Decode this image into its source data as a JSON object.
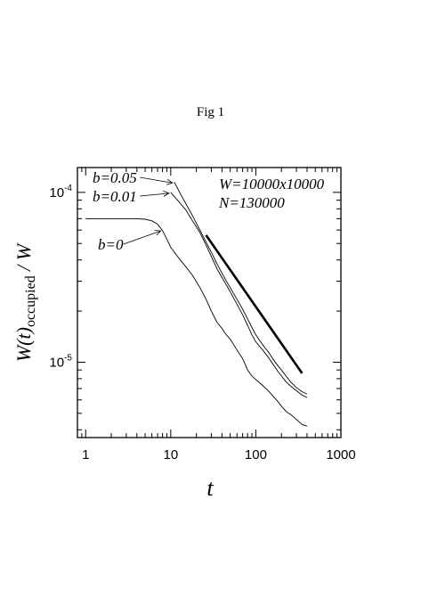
{
  "page": {
    "title": "Fig 1"
  },
  "chart_data": {
    "type": "line",
    "xlabel": "t",
    "ylabel": "W(t)occupied / W",
    "ylabel_parts": {
      "pre": "W(t)",
      "sub": "occupied",
      "post": " / W"
    },
    "xscale": "log",
    "yscale": "log",
    "xlim": [
      0.8,
      1000
    ],
    "ylim": [
      3.6e-06,
      0.00014
    ],
    "xticks": [
      {
        "value": 1,
        "label": "1"
      },
      {
        "value": 10,
        "label": "10"
      },
      {
        "value": 100,
        "label": "100"
      },
      {
        "value": 1000,
        "label": "1000"
      }
    ],
    "yticks": [
      {
        "value": 1e-05,
        "base": "10",
        "exp": "-5"
      },
      {
        "value": 0.0001,
        "base": "10",
        "exp": "-4"
      }
    ],
    "grid": false,
    "parameters": [
      "W=10000x10000",
      "N=130000"
    ],
    "series": [
      {
        "name": "b=0",
        "x": [
          1,
          2,
          3,
          4,
          5,
          6,
          7,
          8,
          9,
          10,
          12,
          15,
          18,
          22,
          26,
          30,
          35,
          40,
          45,
          50,
          60,
          70,
          80,
          90,
          100,
          120,
          140,
          160,
          180,
          200,
          230,
          260,
          300,
          350,
          400
        ],
        "y": [
          7e-05,
          7e-05,
          7e-05,
          7e-05,
          6.95e-05,
          6.8e-05,
          6.5e-05,
          5.95e-05,
          5.3e-05,
          4.75e-05,
          4.2e-05,
          3.65e-05,
          3.25e-05,
          2.75e-05,
          2.35e-05,
          2e-05,
          1.72e-05,
          1.58e-05,
          1.45e-05,
          1.37e-05,
          1.18e-05,
          1.05e-05,
          9e-06,
          8.3e-06,
          7.9e-06,
          7.3e-06,
          6.8e-06,
          6.3e-06,
          5.9e-06,
          5.5e-06,
          5.1e-06,
          4.9e-06,
          4.6e-06,
          4.3e-06,
          4.2e-06
        ]
      },
      {
        "name": "b=0.01",
        "x": [
          10,
          12,
          15,
          18,
          22,
          26,
          30,
          35,
          40,
          45,
          50,
          60,
          70,
          80,
          90,
          100,
          120,
          140,
          160,
          180,
          200,
          230,
          260,
          300,
          350,
          400
        ],
        "y": [
          0.0001,
          9e-05,
          7.9e-05,
          6.8e-05,
          5.8e-05,
          4.9e-05,
          4.2e-05,
          3.55e-05,
          3.15e-05,
          2.85e-05,
          2.6e-05,
          2.2e-05,
          1.9e-05,
          1.65e-05,
          1.45e-05,
          1.32e-05,
          1.18e-05,
          1.07e-05,
          9.7e-06,
          8.9e-06,
          8.3e-06,
          7.6e-06,
          7.2e-06,
          6.8e-06,
          6.4e-06,
          6.2e-06
        ]
      },
      {
        "name": "b=0.05",
        "x": [
          11,
          13,
          15,
          18,
          22,
          26,
          30,
          35,
          40,
          45,
          50,
          60,
          70,
          80,
          90,
          100,
          120,
          140,
          160,
          180,
          200,
          230,
          260,
          300,
          350,
          400
        ],
        "y": [
          0.000115,
          9.8e-05,
          8.6e-05,
          7.3e-05,
          6e-05,
          5.1e-05,
          4.45e-05,
          3.8e-05,
          3.35e-05,
          3e-05,
          2.75e-05,
          2.35e-05,
          2.05e-05,
          1.8e-05,
          1.6e-05,
          1.45e-05,
          1.27e-05,
          1.15e-05,
          1.04e-05,
          9.6e-06,
          9e-06,
          8.2e-06,
          7.6e-06,
          7.1e-06,
          6.7e-06,
          6.5e-06
        ]
      }
    ],
    "reference_line": {
      "x": [
        26,
        350
      ],
      "y": [
        5.6e-05,
        8.6e-06
      ]
    },
    "annotations": [
      {
        "label": "b=0.05",
        "series": "b=0.05",
        "at_x": 11,
        "at_y": 0.000115
      },
      {
        "label": "b=0.01",
        "series": "b=0.01",
        "at_x": 10,
        "at_y": 0.0001
      },
      {
        "label": "b=0",
        "series": "b=0",
        "at_x": 8,
        "at_y": 6e-05
      }
    ]
  }
}
